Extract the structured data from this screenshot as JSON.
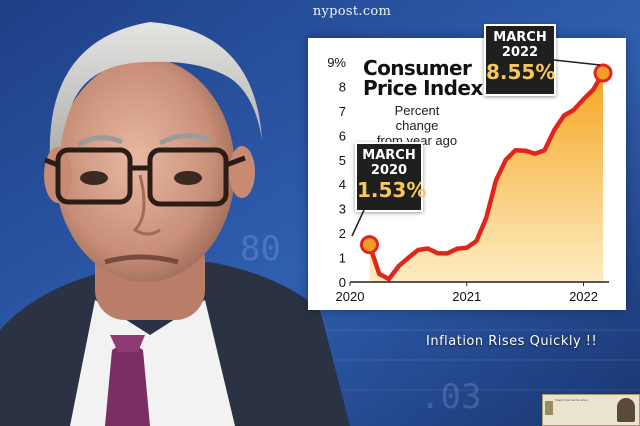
{
  "source": "nypost.com",
  "caption": "Inflation Rises Quickly !!",
  "logo_text": "Stack Financial Services",
  "chart_data": {
    "type": "area",
    "title": [
      "Consumer",
      "Price Index"
    ],
    "subtitle": [
      "Percent change",
      "from year ago"
    ],
    "y_ticks": [
      "0",
      "1",
      "2",
      "3",
      "4",
      "5",
      "6",
      "7",
      "8",
      "9%"
    ],
    "ylim": [
      0,
      9
    ],
    "x_ticks": [
      "2020",
      "2021",
      "2022"
    ],
    "xlim": [
      "2020-01",
      "2022-03"
    ],
    "x": [
      "2020-03",
      "2020-04",
      "2020-05",
      "2020-06",
      "2020-07",
      "2020-08",
      "2020-09",
      "2020-10",
      "2020-11",
      "2020-12",
      "2021-01",
      "2021-02",
      "2021-03",
      "2021-04",
      "2021-05",
      "2021-06",
      "2021-07",
      "2021-08",
      "2021-09",
      "2021-10",
      "2021-11",
      "2021-12",
      "2022-01",
      "2022-02",
      "2022-03"
    ],
    "values": [
      1.53,
      0.33,
      0.12,
      0.65,
      0.99,
      1.31,
      1.37,
      1.18,
      1.17,
      1.36,
      1.4,
      1.68,
      2.62,
      4.16,
      4.99,
      5.39,
      5.37,
      5.25,
      5.39,
      6.22,
      6.81,
      7.04,
      7.48,
      7.87,
      8.55
    ],
    "callouts": [
      {
        "label": "MARCH\n2020",
        "line1": "MARCH",
        "line2": "2020",
        "value": "1.53%"
      },
      {
        "label": "MARCH\n2022",
        "line1": "MARCH",
        "line2": "2022",
        "value": "8.55%"
      }
    ],
    "colors": {
      "line": "#e0261b",
      "fill_top": "#f6a623",
      "fill_bottom": "#fdecc2",
      "marker": "#f39c28",
      "callout_value": "#f7c85a"
    }
  }
}
